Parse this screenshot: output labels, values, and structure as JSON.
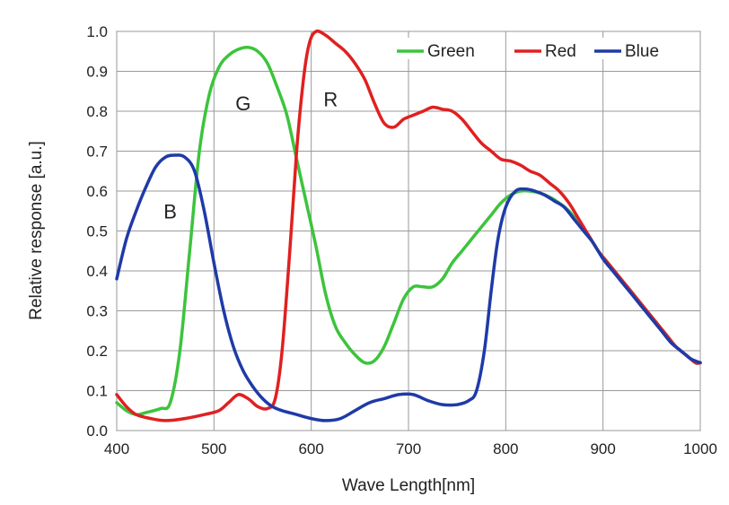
{
  "chart_data": {
    "type": "line",
    "xlabel": "Wave Length[nm]",
    "ylabel": "Relative response [a.u.]",
    "xlim": [
      400,
      1000
    ],
    "ylim": [
      0,
      1.0
    ],
    "x_ticks": [
      "400",
      "500",
      "600",
      "700",
      "800",
      "900",
      "1000"
    ],
    "y_ticks": [
      "0.0",
      "0.1",
      "0.2",
      "0.3",
      "0.4",
      "0.5",
      "0.6",
      "0.7",
      "0.8",
      "0.9",
      "1.0"
    ],
    "grid": true,
    "legend_position": "top-right",
    "series": [
      {
        "name": "Green",
        "color": "#3cc43c",
        "points": [
          [
            400,
            0.07
          ],
          [
            410,
            0.05
          ],
          [
            420,
            0.04
          ],
          [
            430,
            0.045
          ],
          [
            445,
            0.055
          ],
          [
            455,
            0.07
          ],
          [
            465,
            0.2
          ],
          [
            475,
            0.45
          ],
          [
            485,
            0.7
          ],
          [
            495,
            0.84
          ],
          [
            505,
            0.91
          ],
          [
            515,
            0.94
          ],
          [
            525,
            0.955
          ],
          [
            535,
            0.96
          ],
          [
            545,
            0.95
          ],
          [
            555,
            0.92
          ],
          [
            565,
            0.86
          ],
          [
            575,
            0.79
          ],
          [
            585,
            0.68
          ],
          [
            595,
            0.57
          ],
          [
            605,
            0.46
          ],
          [
            615,
            0.34
          ],
          [
            625,
            0.26
          ],
          [
            635,
            0.22
          ],
          [
            645,
            0.19
          ],
          [
            655,
            0.17
          ],
          [
            665,
            0.175
          ],
          [
            675,
            0.21
          ],
          [
            685,
            0.27
          ],
          [
            695,
            0.33
          ],
          [
            705,
            0.36
          ],
          [
            715,
            0.36
          ],
          [
            725,
            0.36
          ],
          [
            735,
            0.38
          ],
          [
            745,
            0.42
          ],
          [
            755,
            0.45
          ],
          [
            765,
            0.48
          ],
          [
            775,
            0.51
          ],
          [
            785,
            0.54
          ],
          [
            795,
            0.57
          ],
          [
            805,
            0.59
          ],
          [
            815,
            0.6
          ],
          [
            825,
            0.6
          ],
          [
            835,
            0.595
          ],
          [
            845,
            0.585
          ],
          [
            855,
            0.57
          ],
          [
            865,
            0.55
          ],
          [
            875,
            0.52
          ],
          [
            885,
            0.49
          ],
          [
            895,
            0.45
          ],
          [
            905,
            0.42
          ],
          [
            915,
            0.39
          ],
          [
            925,
            0.36
          ],
          [
            935,
            0.33
          ],
          [
            945,
            0.3
          ],
          [
            955,
            0.27
          ],
          [
            965,
            0.24
          ],
          [
            975,
            0.21
          ],
          [
            985,
            0.19
          ],
          [
            995,
            0.17
          ],
          [
            1000,
            0.17
          ]
        ]
      },
      {
        "name": "Red",
        "color": "#e02020",
        "points": [
          [
            400,
            0.09
          ],
          [
            410,
            0.06
          ],
          [
            420,
            0.04
          ],
          [
            435,
            0.03
          ],
          [
            450,
            0.025
          ],
          [
            470,
            0.03
          ],
          [
            490,
            0.04
          ],
          [
            505,
            0.05
          ],
          [
            515,
            0.07
          ],
          [
            525,
            0.09
          ],
          [
            535,
            0.08
          ],
          [
            545,
            0.06
          ],
          [
            555,
            0.055
          ],
          [
            563,
            0.08
          ],
          [
            570,
            0.2
          ],
          [
            578,
            0.45
          ],
          [
            585,
            0.7
          ],
          [
            592,
            0.88
          ],
          [
            598,
            0.97
          ],
          [
            605,
            1.0
          ],
          [
            615,
            0.99
          ],
          [
            625,
            0.97
          ],
          [
            635,
            0.95
          ],
          [
            645,
            0.92
          ],
          [
            655,
            0.88
          ],
          [
            665,
            0.82
          ],
          [
            675,
            0.77
          ],
          [
            685,
            0.76
          ],
          [
            695,
            0.78
          ],
          [
            705,
            0.79
          ],
          [
            715,
            0.8
          ],
          [
            725,
            0.81
          ],
          [
            735,
            0.805
          ],
          [
            745,
            0.8
          ],
          [
            755,
            0.78
          ],
          [
            765,
            0.75
          ],
          [
            775,
            0.72
          ],
          [
            785,
            0.7
          ],
          [
            795,
            0.68
          ],
          [
            805,
            0.675
          ],
          [
            815,
            0.665
          ],
          [
            825,
            0.65
          ],
          [
            835,
            0.64
          ],
          [
            845,
            0.62
          ],
          [
            855,
            0.6
          ],
          [
            865,
            0.57
          ],
          [
            875,
            0.53
          ],
          [
            885,
            0.49
          ],
          [
            895,
            0.45
          ],
          [
            905,
            0.42
          ],
          [
            915,
            0.39
          ],
          [
            925,
            0.36
          ],
          [
            935,
            0.33
          ],
          [
            945,
            0.3
          ],
          [
            955,
            0.27
          ],
          [
            965,
            0.24
          ],
          [
            975,
            0.21
          ],
          [
            985,
            0.19
          ],
          [
            995,
            0.17
          ],
          [
            1000,
            0.17
          ]
        ]
      },
      {
        "name": "Blue",
        "color": "#1f3aa8",
        "points": [
          [
            400,
            0.38
          ],
          [
            410,
            0.48
          ],
          [
            420,
            0.55
          ],
          [
            430,
            0.61
          ],
          [
            440,
            0.66
          ],
          [
            450,
            0.685
          ],
          [
            460,
            0.69
          ],
          [
            470,
            0.685
          ],
          [
            480,
            0.65
          ],
          [
            490,
            0.55
          ],
          [
            500,
            0.42
          ],
          [
            510,
            0.3
          ],
          [
            520,
            0.21
          ],
          [
            530,
            0.15
          ],
          [
            540,
            0.11
          ],
          [
            550,
            0.08
          ],
          [
            560,
            0.06
          ],
          [
            570,
            0.05
          ],
          [
            585,
            0.04
          ],
          [
            600,
            0.03
          ],
          [
            615,
            0.025
          ],
          [
            630,
            0.03
          ],
          [
            645,
            0.05
          ],
          [
            660,
            0.07
          ],
          [
            675,
            0.08
          ],
          [
            690,
            0.09
          ],
          [
            705,
            0.09
          ],
          [
            720,
            0.075
          ],
          [
            735,
            0.065
          ],
          [
            750,
            0.065
          ],
          [
            762,
            0.075
          ],
          [
            770,
            0.1
          ],
          [
            778,
            0.2
          ],
          [
            785,
            0.35
          ],
          [
            792,
            0.48
          ],
          [
            800,
            0.56
          ],
          [
            810,
            0.6
          ],
          [
            820,
            0.605
          ],
          [
            830,
            0.6
          ],
          [
            840,
            0.59
          ],
          [
            850,
            0.575
          ],
          [
            860,
            0.56
          ],
          [
            870,
            0.53
          ],
          [
            880,
            0.5
          ],
          [
            890,
            0.47
          ],
          [
            900,
            0.43
          ],
          [
            910,
            0.4
          ],
          [
            920,
            0.37
          ],
          [
            930,
            0.34
          ],
          [
            940,
            0.31
          ],
          [
            950,
            0.28
          ],
          [
            960,
            0.25
          ],
          [
            970,
            0.22
          ],
          [
            980,
            0.2
          ],
          [
            990,
            0.18
          ],
          [
            1000,
            0.17
          ]
        ]
      }
    ],
    "annotations": [
      {
        "text": "B",
        "x": 455,
        "y": 0.55
      },
      {
        "text": "G",
        "x": 530,
        "y": 0.82
      },
      {
        "text": "R",
        "x": 620,
        "y": 0.83
      }
    ]
  }
}
